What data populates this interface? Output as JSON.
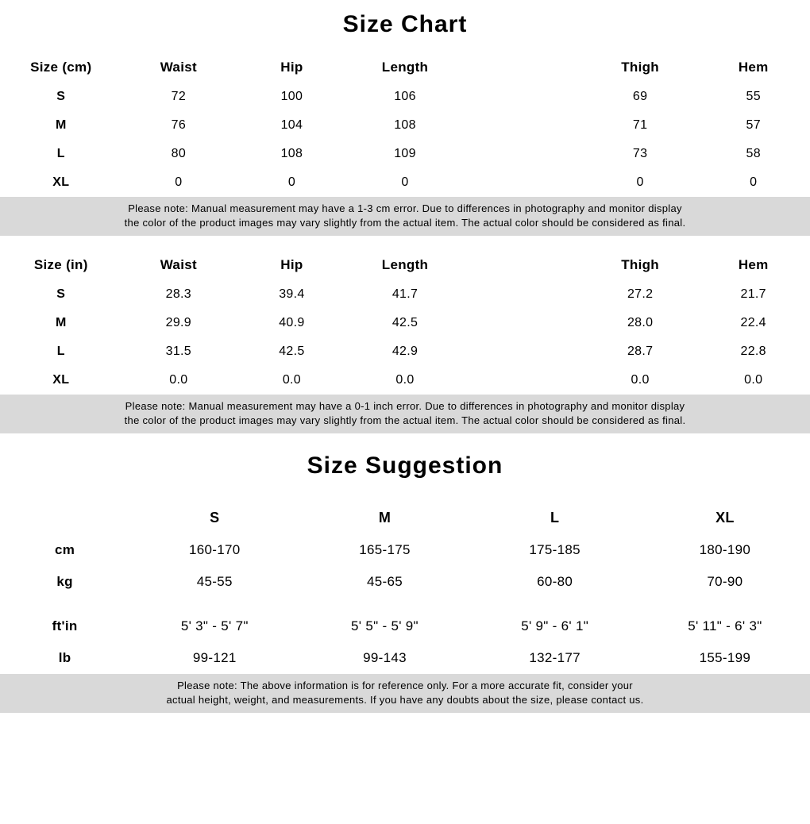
{
  "colors": {
    "background": "#ffffff",
    "text": "#000000",
    "note_band": "#d9d9d9"
  },
  "typography": {
    "title_fontsize": 30,
    "header_fontsize": 17,
    "body_fontsize": 16,
    "note_fontsize": 13
  },
  "section1": {
    "title": "Size Chart",
    "table_cm": {
      "columns": [
        "Size (cm)",
        "Waist",
        "Hip",
        "Length",
        "Thigh",
        "Hem"
      ],
      "rows": [
        [
          "S",
          "72",
          "100",
          "106",
          "69",
          "55"
        ],
        [
          "M",
          "76",
          "104",
          "108",
          "71",
          "57"
        ],
        [
          "L",
          "80",
          "108",
          "109",
          "73",
          "58"
        ],
        [
          "XL",
          "0",
          "0",
          "0",
          "0",
          "0"
        ]
      ],
      "note_line1": "Please note: Manual measurement may have a 1-3 cm error. Due to differences in photography and monitor display",
      "note_line2": "the color of the product images may vary slightly from the actual item. The actual color should be considered as final."
    },
    "table_in": {
      "columns": [
        "Size (in)",
        "Waist",
        "Hip",
        "Length",
        "Thigh",
        "Hem"
      ],
      "rows": [
        [
          "S",
          "28.3",
          "39.4",
          "41.7",
          "27.2",
          "21.7"
        ],
        [
          "M",
          "29.9",
          "40.9",
          "42.5",
          "28.0",
          "22.4"
        ],
        [
          "L",
          "31.5",
          "42.5",
          "42.9",
          "28.7",
          "22.8"
        ],
        [
          "XL",
          "0.0",
          "0.0",
          "0.0",
          "0.0",
          "0.0"
        ]
      ],
      "note_line1": "Please note: Manual measurement may have a 0-1 inch error. Due to differences in photography and monitor display",
      "note_line2": "the color of the product images may vary slightly from the actual item. The actual color should be considered as final."
    }
  },
  "section2": {
    "title": "Size Suggestion",
    "columns": [
      "",
      "S",
      "M",
      "L",
      "XL"
    ],
    "rows_metric": [
      [
        "cm",
        "160-170",
        "165-175",
        "175-185",
        "180-190"
      ],
      [
        "kg",
        "45-55",
        "45-65",
        "60-80",
        "70-90"
      ]
    ],
    "rows_imperial": [
      [
        "ft'in",
        "5' 3\" - 5' 7\"",
        "5' 5\" - 5' 9\"",
        "5' 9\" - 6' 1\"",
        "5' 11\" - 6' 3\""
      ],
      [
        "lb",
        "99-121",
        "99-143",
        "132-177",
        "155-199"
      ]
    ],
    "note_line1": "Please note: The above information is for reference only. For a more accurate fit, consider your",
    "note_line2": "actual height, weight, and measurements. If you have any doubts about the size, please contact us."
  }
}
